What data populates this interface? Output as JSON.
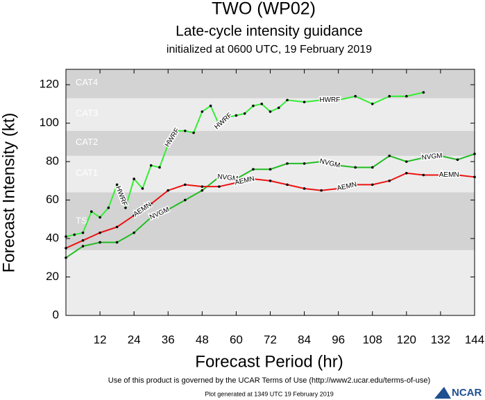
{
  "chart_data": {
    "type": "line",
    "title": "TWO (WP02)",
    "subtitle": "Late-cycle intensity guidance",
    "subtitle2": "initialized at 0600 UTC, 19 February 2019",
    "x_label": "Forecast Period (hr)",
    "y_label": "Forecast Intensity (kt)",
    "xlim": [
      0,
      144
    ],
    "ylim": [
      0,
      128
    ],
    "xticks": [
      12,
      24,
      36,
      48,
      60,
      72,
      84,
      96,
      108,
      120,
      132,
      144
    ],
    "yticks": [
      0,
      20,
      40,
      60,
      80,
      100,
      120
    ],
    "bands": [
      {
        "label": "TS",
        "from": 34,
        "to": 64,
        "color": "#d3d3d3"
      },
      {
        "label": "CAT1",
        "from": 64,
        "to": 83,
        "color": "#ececec"
      },
      {
        "label": "CAT2",
        "from": 83,
        "to": 96,
        "color": "#d3d3d3"
      },
      {
        "label": "CAT3",
        "from": 96,
        "to": 113,
        "color": "#ececec"
      },
      {
        "label": "CAT4",
        "from": 113,
        "to": 128,
        "color": "#d3d3d3"
      }
    ],
    "series": [
      {
        "name": "HWRF",
        "color": "#33ee33",
        "x": [
          0,
          3,
          6,
          9,
          12,
          15,
          18,
          21,
          24,
          27,
          30,
          33,
          36,
          39,
          42,
          45,
          48,
          51,
          54,
          57,
          60,
          63,
          66,
          69,
          72,
          75,
          78,
          84,
          90,
          96,
          102,
          108,
          114,
          120,
          126
        ],
        "values": [
          41,
          42,
          43,
          54,
          51,
          56,
          68,
          56,
          71,
          66,
          78,
          77,
          89,
          96,
          96,
          95,
          106,
          109,
          99,
          103,
          104,
          105,
          109,
          110,
          106,
          108,
          112,
          111,
          112,
          112,
          114,
          110,
          114,
          114,
          116
        ]
      },
      {
        "name": "NVGM",
        "color": "#22bb22",
        "x": [
          0,
          6,
          12,
          18,
          24,
          30,
          36,
          42,
          48,
          54,
          60,
          66,
          72,
          78,
          84,
          90,
          96,
          102,
          108,
          114,
          120,
          126,
          132,
          138,
          144
        ],
        "values": [
          30,
          36,
          38,
          38,
          43,
          51,
          55,
          60,
          65,
          72,
          71,
          76,
          76,
          79,
          79,
          80,
          78,
          77,
          77,
          83,
          80,
          82,
          83,
          81,
          84
        ]
      },
      {
        "name": "AEMN",
        "color": "#ee1111",
        "x": [
          0,
          6,
          12,
          18,
          24,
          30,
          36,
          42,
          48,
          54,
          60,
          66,
          72,
          78,
          84,
          90,
          96,
          102,
          108,
          114,
          120,
          126,
          132,
          138,
          144
        ],
        "values": [
          35,
          39,
          43,
          46,
          52,
          58,
          65,
          68,
          67,
          67,
          69,
          71,
          70,
          68,
          66,
          65,
          66,
          68,
          68,
          70,
          74,
          73,
          73,
          73,
          72
        ]
      }
    ],
    "footer": "Use of this product is governed by the UCAR Terms of Use (http://www2.ucar.edu/terms-of-use)",
    "footer2": "Plot generated at 1349 UTC  19 February 2019",
    "logo": "NCAR"
  }
}
